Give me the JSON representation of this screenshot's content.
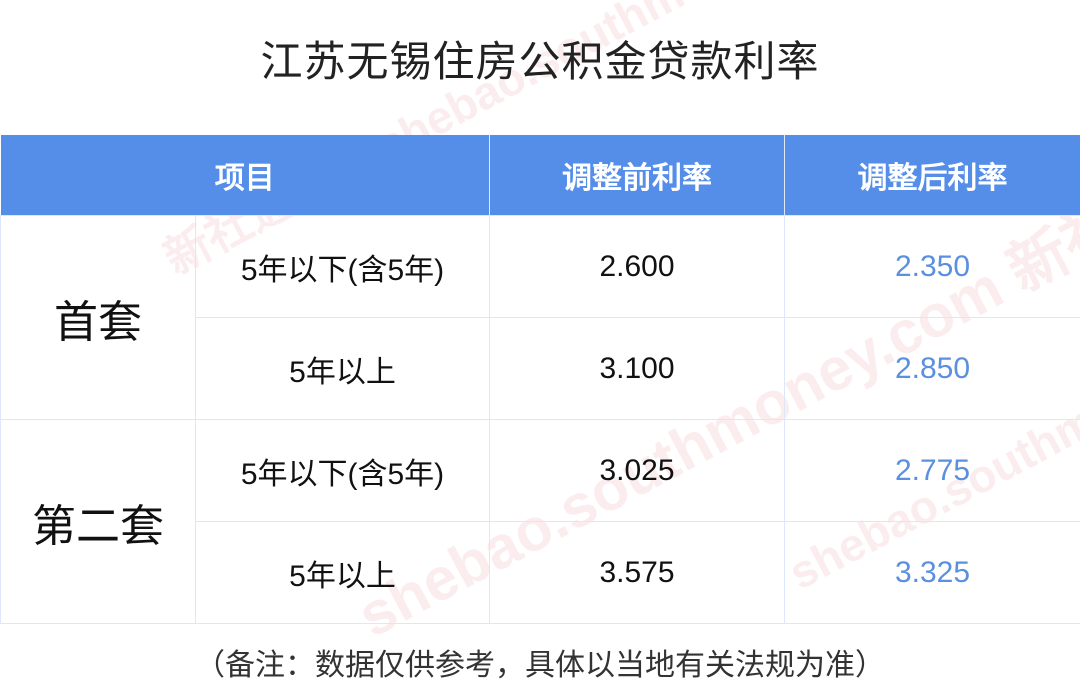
{
  "title": "江苏无锡住房公积金贷款利率",
  "table": {
    "headers": [
      "项目",
      "调整前利率",
      "调整后利率"
    ],
    "groups": [
      {
        "label": "首套",
        "rows": [
          {
            "term": "5年以下(含5年)",
            "before": "2.600",
            "after": "2.350"
          },
          {
            "term": "5年以上",
            "before": "3.100",
            "after": "2.850"
          }
        ]
      },
      {
        "label": "第二套",
        "rows": [
          {
            "term": "5年以下(含5年)",
            "before": "3.025",
            "after": "2.775"
          },
          {
            "term": "5年以上",
            "before": "3.575",
            "after": "3.325"
          }
        ]
      }
    ]
  },
  "note": "（备注：数据仅供参考，具体以当地有关法规为准）",
  "watermark": "shebao.southmoney.com 新社通App",
  "colors": {
    "header": "#558ee8",
    "after_value": "#5b8fe0",
    "grid": "#dce8fa"
  }
}
